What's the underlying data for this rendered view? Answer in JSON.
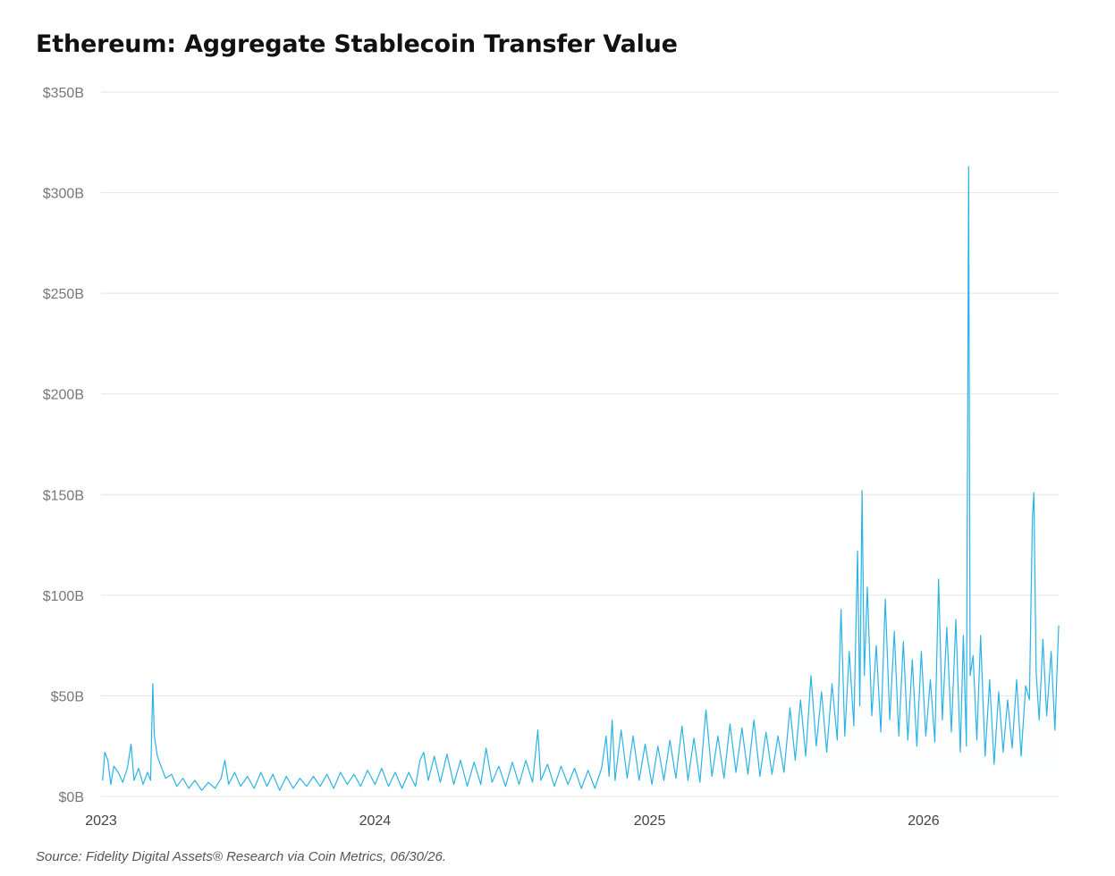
{
  "page": {
    "title": "Ethereum: Aggregate Stablecoin Transfer Value",
    "source": "Source: Fidelity Digital Assets® Research via Coin Metrics, 06/30/26."
  },
  "colors": {
    "line": "#2bb3e6",
    "fill": "#cdeefb",
    "grid": "#e3e3e3"
  },
  "chart_data": {
    "type": "area",
    "title": "Ethereum: Aggregate Stablecoin Transfer Value",
    "xlabel": "",
    "ylabel": "",
    "unit": "USD billions",
    "ylim": [
      0,
      350
    ],
    "xlim": [
      "2023-01-01",
      "2026-06-30"
    ],
    "grid": true,
    "legend": "none",
    "y_ticks": [
      {
        "value": 0,
        "label": "$0B"
      },
      {
        "value": 50,
        "label": "$50B"
      },
      {
        "value": 100,
        "label": "$100B"
      },
      {
        "value": 150,
        "label": "$150B"
      },
      {
        "value": 200,
        "label": "$200B"
      },
      {
        "value": 250,
        "label": "$250B"
      },
      {
        "value": 300,
        "label": "$300B"
      },
      {
        "value": 350,
        "label": "$350B"
      }
    ],
    "x_ticks": [
      {
        "value": "2023-01-01",
        "label": "2023"
      },
      {
        "value": "2024-01-01",
        "label": "2024"
      },
      {
        "value": "2025-01-01",
        "label": "2025"
      },
      {
        "value": "2026-01-01",
        "label": "2026"
      }
    ],
    "series": [
      {
        "points": [
          [
            "2023-01-03",
            8
          ],
          [
            "2023-01-06",
            22
          ],
          [
            "2023-01-10",
            18
          ],
          [
            "2023-01-14",
            6
          ],
          [
            "2023-01-18",
            15
          ],
          [
            "2023-01-24",
            12
          ],
          [
            "2023-01-30",
            7
          ],
          [
            "2023-02-05",
            14
          ],
          [
            "2023-02-10",
            26
          ],
          [
            "2023-02-14",
            8
          ],
          [
            "2023-02-20",
            14
          ],
          [
            "2023-02-26",
            6
          ],
          [
            "2023-03-04",
            12
          ],
          [
            "2023-03-08",
            8
          ],
          [
            "2023-03-11",
            56
          ],
          [
            "2023-03-13",
            30
          ],
          [
            "2023-03-17",
            20
          ],
          [
            "2023-03-22",
            15
          ],
          [
            "2023-03-28",
            9
          ],
          [
            "2023-04-05",
            11
          ],
          [
            "2023-04-12",
            5
          ],
          [
            "2023-04-20",
            9
          ],
          [
            "2023-04-28",
            4
          ],
          [
            "2023-05-06",
            8
          ],
          [
            "2023-05-15",
            3
          ],
          [
            "2023-05-24",
            7
          ],
          [
            "2023-06-02",
            4
          ],
          [
            "2023-06-10",
            9
          ],
          [
            "2023-06-15",
            18
          ],
          [
            "2023-06-20",
            6
          ],
          [
            "2023-06-28",
            12
          ],
          [
            "2023-07-06",
            5
          ],
          [
            "2023-07-15",
            10
          ],
          [
            "2023-07-24",
            4
          ],
          [
            "2023-08-02",
            12
          ],
          [
            "2023-08-10",
            5
          ],
          [
            "2023-08-18",
            11
          ],
          [
            "2023-08-27",
            3
          ],
          [
            "2023-09-05",
            10
          ],
          [
            "2023-09-14",
            4
          ],
          [
            "2023-09-23",
            9
          ],
          [
            "2023-10-02",
            5
          ],
          [
            "2023-10-11",
            10
          ],
          [
            "2023-10-20",
            5
          ],
          [
            "2023-10-29",
            11
          ],
          [
            "2023-11-07",
            4
          ],
          [
            "2023-11-16",
            12
          ],
          [
            "2023-11-25",
            6
          ],
          [
            "2023-12-04",
            11
          ],
          [
            "2023-12-13",
            5
          ],
          [
            "2023-12-22",
            13
          ],
          [
            "2024-01-01",
            6
          ],
          [
            "2024-01-10",
            14
          ],
          [
            "2024-01-19",
            5
          ],
          [
            "2024-01-28",
            12
          ],
          [
            "2024-02-06",
            4
          ],
          [
            "2024-02-15",
            12
          ],
          [
            "2024-02-24",
            5
          ],
          [
            "2024-03-01",
            18
          ],
          [
            "2024-03-06",
            22
          ],
          [
            "2024-03-12",
            8
          ],
          [
            "2024-03-20",
            20
          ],
          [
            "2024-03-28",
            7
          ],
          [
            "2024-04-06",
            21
          ],
          [
            "2024-04-15",
            6
          ],
          [
            "2024-04-24",
            18
          ],
          [
            "2024-05-03",
            5
          ],
          [
            "2024-05-12",
            17
          ],
          [
            "2024-05-21",
            6
          ],
          [
            "2024-05-28",
            24
          ],
          [
            "2024-06-05",
            7
          ],
          [
            "2024-06-14",
            15
          ],
          [
            "2024-06-23",
            5
          ],
          [
            "2024-07-02",
            17
          ],
          [
            "2024-07-11",
            6
          ],
          [
            "2024-07-20",
            18
          ],
          [
            "2024-07-29",
            7
          ],
          [
            "2024-08-05",
            33
          ],
          [
            "2024-08-09",
            8
          ],
          [
            "2024-08-18",
            16
          ],
          [
            "2024-08-27",
            5
          ],
          [
            "2024-09-05",
            15
          ],
          [
            "2024-09-14",
            6
          ],
          [
            "2024-09-23",
            14
          ],
          [
            "2024-10-02",
            4
          ],
          [
            "2024-10-11",
            13
          ],
          [
            "2024-10-20",
            4
          ],
          [
            "2024-10-29",
            14
          ],
          [
            "2024-11-04",
            30
          ],
          [
            "2024-11-08",
            10
          ],
          [
            "2024-11-12",
            38
          ],
          [
            "2024-11-16",
            8
          ],
          [
            "2024-11-24",
            33
          ],
          [
            "2024-12-02",
            9
          ],
          [
            "2024-12-10",
            30
          ],
          [
            "2024-12-18",
            8
          ],
          [
            "2024-12-26",
            26
          ],
          [
            "2025-01-04",
            6
          ],
          [
            "2025-01-12",
            25
          ],
          [
            "2025-01-20",
            8
          ],
          [
            "2025-01-28",
            28
          ],
          [
            "2025-02-05",
            9
          ],
          [
            "2025-02-13",
            35
          ],
          [
            "2025-02-21",
            8
          ],
          [
            "2025-03-01",
            29
          ],
          [
            "2025-03-09",
            7
          ],
          [
            "2025-03-17",
            43
          ],
          [
            "2025-03-25",
            10
          ],
          [
            "2025-04-02",
            30
          ],
          [
            "2025-04-10",
            9
          ],
          [
            "2025-04-18",
            36
          ],
          [
            "2025-04-26",
            12
          ],
          [
            "2025-05-04",
            34
          ],
          [
            "2025-05-12",
            11
          ],
          [
            "2025-05-20",
            38
          ],
          [
            "2025-05-28",
            10
          ],
          [
            "2025-06-05",
            32
          ],
          [
            "2025-06-13",
            11
          ],
          [
            "2025-06-21",
            30
          ],
          [
            "2025-06-29",
            12
          ],
          [
            "2025-07-07",
            44
          ],
          [
            "2025-07-14",
            18
          ],
          [
            "2025-07-21",
            48
          ],
          [
            "2025-07-28",
            20
          ],
          [
            "2025-08-04",
            60
          ],
          [
            "2025-08-11",
            25
          ],
          [
            "2025-08-18",
            52
          ],
          [
            "2025-08-25",
            22
          ],
          [
            "2025-09-01",
            56
          ],
          [
            "2025-09-08",
            28
          ],
          [
            "2025-09-13",
            93
          ],
          [
            "2025-09-18",
            30
          ],
          [
            "2025-09-24",
            72
          ],
          [
            "2025-09-30",
            35
          ],
          [
            "2025-10-05",
            122
          ],
          [
            "2025-10-08",
            45
          ],
          [
            "2025-10-11",
            152
          ],
          [
            "2025-10-14",
            60
          ],
          [
            "2025-10-18",
            104
          ],
          [
            "2025-10-24",
            40
          ],
          [
            "2025-10-30",
            75
          ],
          [
            "2025-11-05",
            32
          ],
          [
            "2025-11-11",
            98
          ],
          [
            "2025-11-17",
            38
          ],
          [
            "2025-11-23",
            82
          ],
          [
            "2025-11-29",
            30
          ],
          [
            "2025-12-05",
            77
          ],
          [
            "2025-12-11",
            28
          ],
          [
            "2025-12-17",
            68
          ],
          [
            "2025-12-23",
            25
          ],
          [
            "2025-12-29",
            72
          ],
          [
            "2026-01-04",
            30
          ],
          [
            "2026-01-10",
            58
          ],
          [
            "2026-01-16",
            27
          ],
          [
            "2026-01-21",
            108
          ],
          [
            "2026-01-26",
            38
          ],
          [
            "2026-02-01",
            84
          ],
          [
            "2026-02-07",
            32
          ],
          [
            "2026-02-13",
            88
          ],
          [
            "2026-02-19",
            22
          ],
          [
            "2026-02-23",
            80
          ],
          [
            "2026-02-27",
            25
          ],
          [
            "2026-03-02",
            313
          ],
          [
            "2026-03-04",
            60
          ],
          [
            "2026-03-08",
            70
          ],
          [
            "2026-03-13",
            28
          ],
          [
            "2026-03-18",
            80
          ],
          [
            "2026-03-24",
            20
          ],
          [
            "2026-03-30",
            58
          ],
          [
            "2026-04-05",
            16
          ],
          [
            "2026-04-11",
            52
          ],
          [
            "2026-04-17",
            22
          ],
          [
            "2026-04-23",
            48
          ],
          [
            "2026-04-29",
            24
          ],
          [
            "2026-05-05",
            58
          ],
          [
            "2026-05-11",
            20
          ],
          [
            "2026-05-17",
            55
          ],
          [
            "2026-05-22",
            48
          ],
          [
            "2026-05-26",
            138
          ],
          [
            "2026-05-28",
            151
          ],
          [
            "2026-05-31",
            62
          ],
          [
            "2026-06-04",
            38
          ],
          [
            "2026-06-09",
            78
          ],
          [
            "2026-06-14",
            40
          ],
          [
            "2026-06-20",
            72
          ],
          [
            "2026-06-25",
            33
          ],
          [
            "2026-06-30",
            85
          ]
        ]
      }
    ]
  }
}
